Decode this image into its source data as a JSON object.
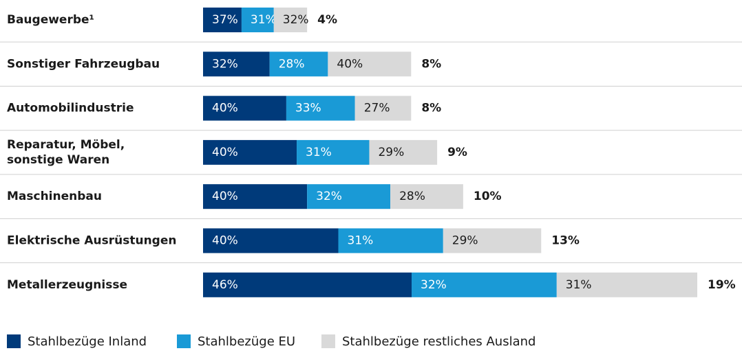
{
  "chart_data": {
    "type": "bar",
    "categories": [
      "Baugewerbe¹",
      "Sonstiger Fahrzeugbau",
      "Automobilindustrie",
      "Reparatur, Möbel,\nsonstige Waren",
      "Maschinenbau",
      "Elektrische Ausrüstungen",
      "Metallerzeugnisse"
    ],
    "series": [
      {
        "name": "Stahlbezüge Inland",
        "color": "#003a7a",
        "values": [
          37,
          32,
          40,
          40,
          40,
          40,
          46
        ],
        "value_labels": [
          "37%",
          "32%",
          "40%",
          "40%",
          "40%",
          "40%",
          "46%"
        ]
      },
      {
        "name": "Stahlbezüge EU",
        "color": "#1a9ad6",
        "values": [
          31,
          28,
          33,
          31,
          32,
          31,
          32
        ],
        "value_labels": [
          "31%",
          "28%",
          "33%",
          "31%",
          "32%",
          "31%",
          "32%"
        ]
      },
      {
        "name": "Stahlbezüge restliches Ausland",
        "color": "#d9d9d9",
        "values": [
          32,
          40,
          27,
          29,
          28,
          29,
          31
        ],
        "value_labels": [
          "32%",
          "40%",
          "27%",
          "29%",
          "28%",
          "29%",
          "31%"
        ]
      }
    ],
    "totals": [
      4,
      8,
      8,
      9,
      10,
      13,
      19
    ],
    "totals_labels": [
      "4%",
      "8%",
      "8%",
      "9%",
      "10%",
      "13%",
      "19%"
    ]
  }
}
